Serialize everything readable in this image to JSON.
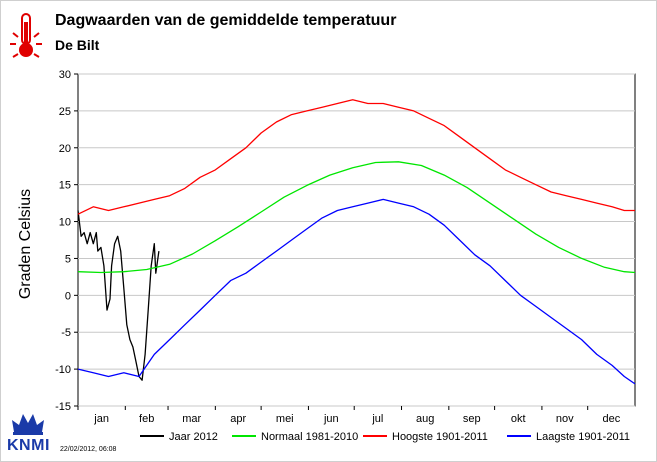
{
  "title": "Dagwaarden van de gemiddelde temperatuur",
  "subtitle": "De Bilt",
  "footer_timestamp": "22/02/2012, 06:08",
  "logo_text": "KNMI",
  "icons": {
    "header": "thermometer-icon",
    "logo": "crown-icon"
  },
  "chart_data": {
    "type": "line",
    "title": "Dagwaarden van de gemiddelde temperatuur",
    "subtitle": "De Bilt",
    "xlabel": "",
    "ylabel": "Graden Celsius",
    "ylim": [
      -15,
      30
    ],
    "y_ticks": [
      30,
      25,
      20,
      15,
      10,
      5,
      0,
      -5,
      -10,
      -15
    ],
    "grid": true,
    "legend_position": "bottom",
    "month_labels": [
      "jan",
      "feb",
      "mar",
      "apr",
      "mei",
      "jun",
      "jul",
      "aug",
      "sep",
      "okt",
      "nov",
      "dec"
    ],
    "series": [
      {
        "name": "Jaar 2012",
        "color": "#000000",
        "points": [
          [
            0,
            11.5
          ],
          [
            2,
            8
          ],
          [
            4,
            8.5
          ],
          [
            6,
            7
          ],
          [
            8,
            8.5
          ],
          [
            10,
            7
          ],
          [
            12,
            8.5
          ],
          [
            13,
            6
          ],
          [
            15,
            6.5
          ],
          [
            17,
            4
          ],
          [
            19,
            -2
          ],
          [
            21,
            -0.5
          ],
          [
            22,
            4
          ],
          [
            24,
            7
          ],
          [
            26,
            8
          ],
          [
            28,
            6
          ],
          [
            30,
            1
          ],
          [
            32,
            -4
          ],
          [
            34,
            -6
          ],
          [
            36,
            -7
          ],
          [
            38,
            -9
          ],
          [
            40,
            -11
          ],
          [
            42,
            -11.5
          ],
          [
            44,
            -8
          ],
          [
            46,
            -2
          ],
          [
            48,
            4
          ],
          [
            50,
            7
          ],
          [
            51,
            3
          ],
          [
            53,
            6
          ]
        ]
      },
      {
        "name": "Normaal 1981-2010",
        "color": "#00e600",
        "points": [
          [
            0,
            3.2
          ],
          [
            15,
            3.1
          ],
          [
            30,
            3.2
          ],
          [
            45,
            3.5
          ],
          [
            60,
            4.2
          ],
          [
            75,
            5.6
          ],
          [
            90,
            7.4
          ],
          [
            105,
            9.3
          ],
          [
            120,
            11.3
          ],
          [
            135,
            13.3
          ],
          [
            150,
            14.9
          ],
          [
            165,
            16.3
          ],
          [
            180,
            17.3
          ],
          [
            195,
            18.0
          ],
          [
            210,
            18.1
          ],
          [
            225,
            17.6
          ],
          [
            240,
            16.3
          ],
          [
            255,
            14.6
          ],
          [
            270,
            12.5
          ],
          [
            285,
            10.4
          ],
          [
            300,
            8.3
          ],
          [
            315,
            6.5
          ],
          [
            330,
            5.0
          ],
          [
            345,
            3.8
          ],
          [
            358,
            3.2
          ],
          [
            365,
            3.1
          ]
        ]
      },
      {
        "name": "Hoogste 1901-2011",
        "color": "#ff0000",
        "points": [
          [
            0,
            11
          ],
          [
            10,
            12
          ],
          [
            20,
            11.5
          ],
          [
            30,
            12
          ],
          [
            40,
            12.5
          ],
          [
            50,
            13
          ],
          [
            60,
            13.5
          ],
          [
            70,
            14.5
          ],
          [
            80,
            16
          ],
          [
            90,
            17
          ],
          [
            100,
            18.5
          ],
          [
            110,
            20
          ],
          [
            120,
            22
          ],
          [
            130,
            23.5
          ],
          [
            140,
            24.5
          ],
          [
            150,
            25
          ],
          [
            160,
            25.5
          ],
          [
            170,
            26
          ],
          [
            180,
            26.5
          ],
          [
            190,
            26
          ],
          [
            200,
            26
          ],
          [
            210,
            25.5
          ],
          [
            220,
            25
          ],
          [
            230,
            24
          ],
          [
            240,
            23
          ],
          [
            250,
            21.5
          ],
          [
            260,
            20
          ],
          [
            270,
            18.5
          ],
          [
            280,
            17
          ],
          [
            290,
            16
          ],
          [
            300,
            15
          ],
          [
            310,
            14
          ],
          [
            320,
            13.5
          ],
          [
            330,
            13
          ],
          [
            340,
            12.5
          ],
          [
            350,
            12
          ],
          [
            358,
            11.5
          ],
          [
            365,
            11.5
          ]
        ]
      },
      {
        "name": "Laagste 1901-2011",
        "color": "#0000ff",
        "points": [
          [
            0,
            -10
          ],
          [
            10,
            -10.5
          ],
          [
            20,
            -11
          ],
          [
            30,
            -10.5
          ],
          [
            40,
            -11
          ],
          [
            50,
            -8
          ],
          [
            60,
            -6
          ],
          [
            70,
            -4
          ],
          [
            80,
            -2
          ],
          [
            90,
            0
          ],
          [
            100,
            2
          ],
          [
            110,
            3
          ],
          [
            120,
            4.5
          ],
          [
            130,
            6
          ],
          [
            140,
            7.5
          ],
          [
            150,
            9
          ],
          [
            160,
            10.5
          ],
          [
            170,
            11.5
          ],
          [
            180,
            12
          ],
          [
            190,
            12.5
          ],
          [
            200,
            13
          ],
          [
            210,
            12.5
          ],
          [
            220,
            12
          ],
          [
            230,
            11
          ],
          [
            240,
            9.5
          ],
          [
            250,
            7.5
          ],
          [
            260,
            5.5
          ],
          [
            270,
            4
          ],
          [
            280,
            2
          ],
          [
            290,
            0
          ],
          [
            300,
            -1.5
          ],
          [
            310,
            -3
          ],
          [
            320,
            -4.5
          ],
          [
            330,
            -6
          ],
          [
            340,
            -8
          ],
          [
            350,
            -9.5
          ],
          [
            358,
            -11
          ],
          [
            365,
            -12
          ]
        ]
      }
    ]
  }
}
